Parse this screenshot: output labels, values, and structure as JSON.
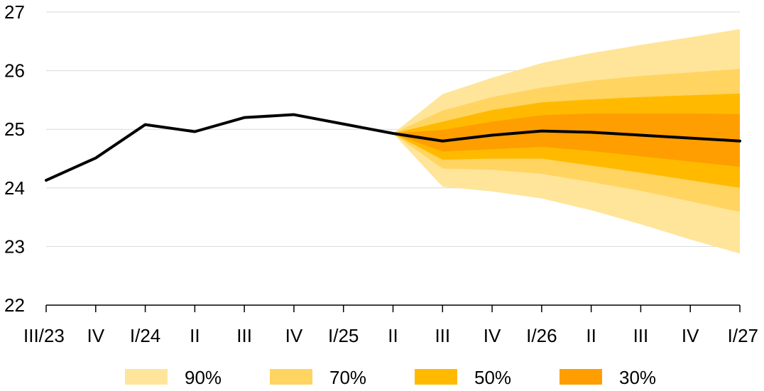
{
  "chart_data": {
    "type": "area",
    "title": "",
    "xlabel": "",
    "ylabel": "",
    "ylim": [
      22,
      27
    ],
    "yticks": [
      "22",
      "23",
      "24",
      "25",
      "26",
      "27"
    ],
    "categories": [
      "III/23",
      "IV",
      "I/24",
      "II",
      "III",
      "IV",
      "I/25",
      "II",
      "III",
      "IV",
      "I/26",
      "II",
      "III",
      "IV",
      "I/27"
    ],
    "grid": true,
    "legend_position": "bottom",
    "series": [
      {
        "values": [
          24.13,
          24.51,
          25.08,
          24.96,
          25.2,
          25.25,
          25.09,
          24.93,
          24.8,
          24.9,
          24.97,
          24.95,
          24.9,
          24.85,
          24.8
        ]
      }
    ],
    "bands": [
      {
        "name": "90%",
        "color": "#FFE59A",
        "lower": [
          24.93,
          24.02,
          23.94,
          23.82,
          23.62,
          23.38,
          23.12,
          22.88
        ],
        "upper": [
          24.93,
          25.6,
          25.88,
          26.13,
          26.3,
          26.44,
          26.57,
          26.71
        ]
      },
      {
        "name": "70%",
        "color": "#FFD461",
        "lower": [
          24.93,
          24.33,
          24.31,
          24.24,
          24.1,
          23.95,
          23.77,
          23.59
        ],
        "upper": [
          24.93,
          25.32,
          25.55,
          25.71,
          25.83,
          25.91,
          25.97,
          26.03
        ]
      },
      {
        "name": "50%",
        "color": "#FFBA00",
        "lower": [
          24.93,
          24.48,
          24.5,
          24.5,
          24.38,
          24.26,
          24.13,
          24.0
        ],
        "upper": [
          24.93,
          25.13,
          25.33,
          25.46,
          25.51,
          25.55,
          25.58,
          25.61
        ]
      },
      {
        "name": "30%",
        "color": "#FF9E00",
        "lower": [
          24.93,
          24.62,
          24.66,
          24.7,
          24.63,
          24.54,
          24.45,
          24.36
        ],
        "upper": [
          24.93,
          24.99,
          25.13,
          25.24,
          25.27,
          25.27,
          25.27,
          25.26
        ]
      }
    ],
    "band_start_index": 7
  }
}
